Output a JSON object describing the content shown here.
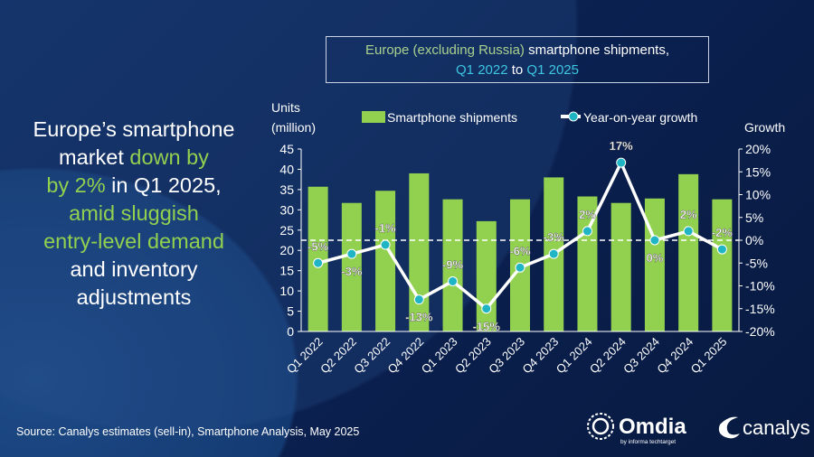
{
  "title": {
    "part1": "Europe (excluding Russia)",
    "part2": " smartphone shipments,",
    "part3": "Q1 2022",
    "part4": " to ",
    "part5": "Q1 2025"
  },
  "headline": {
    "l1": "Europe’s smartphone",
    "l2a": "market ",
    "l2b": "down by",
    "l3a": "by 2%",
    "l3b": " in Q1 2025,",
    "l4": "amid sluggish",
    "l5": "entry-level demand",
    "l6": "and inventory",
    "l7": "adjustments"
  },
  "source": "Source: Canalys estimates (sell-in), Smartphone Analysis, May 2025",
  "logos": {
    "omdia": "Omdia",
    "omdia_sub": "by informa techtarget",
    "canalys": "canalys"
  },
  "colors": {
    "bar": "#92d050",
    "line": "#ffffff",
    "marker": "#1fb5c4",
    "zero_line": "#ffffff"
  },
  "chart_data": {
    "type": "bar+line",
    "categories": [
      "Q1 2022",
      "Q2 2022",
      "Q3 2022",
      "Q4 2022",
      "Q1 2023",
      "Q2 2023",
      "Q3 2023",
      "Q4 2023",
      "Q1 2024",
      "Q2 2024",
      "Q3 2024",
      "Q4 2024",
      "Q1 2025"
    ],
    "series": [
      {
        "name": "Smartphone shipments",
        "type": "bar",
        "axis": "left",
        "values": [
          35.7,
          31.7,
          34.7,
          39.0,
          32.6,
          27.2,
          32.6,
          38.0,
          33.3,
          31.7,
          32.8,
          38.8,
          32.6
        ]
      },
      {
        "name": "Year-on-year growth",
        "type": "line",
        "axis": "right",
        "values": [
          -5,
          -3,
          -1,
          -13,
          -9,
          -15,
          -6,
          -3,
          2,
          17,
          0,
          2,
          -2
        ],
        "labels": [
          "-5%",
          "-3%",
          "-1%",
          "-13%",
          "-9%",
          "-15%",
          "-6%",
          "-3%",
          "2%",
          "17%",
          "0%",
          "2%",
          "-2%"
        ]
      }
    ],
    "ylabel_left": "Units (million)",
    "ylabel_left_l1": "Units",
    "ylabel_left_l2": "(million)",
    "ylabel_right": "Growth",
    "ylim_left": [
      0,
      45
    ],
    "yticks_left": [
      "0",
      "5",
      "10",
      "15",
      "20",
      "25",
      "30",
      "35",
      "40",
      "45"
    ],
    "ylim_right": [
      -20,
      20
    ],
    "yticks_right": [
      "-20%",
      "-15%",
      "-10%",
      "-5%",
      "0%",
      "5%",
      "10%",
      "15%",
      "20%"
    ],
    "legend_placement": "top",
    "grid": false,
    "zero_line": "dashed"
  }
}
